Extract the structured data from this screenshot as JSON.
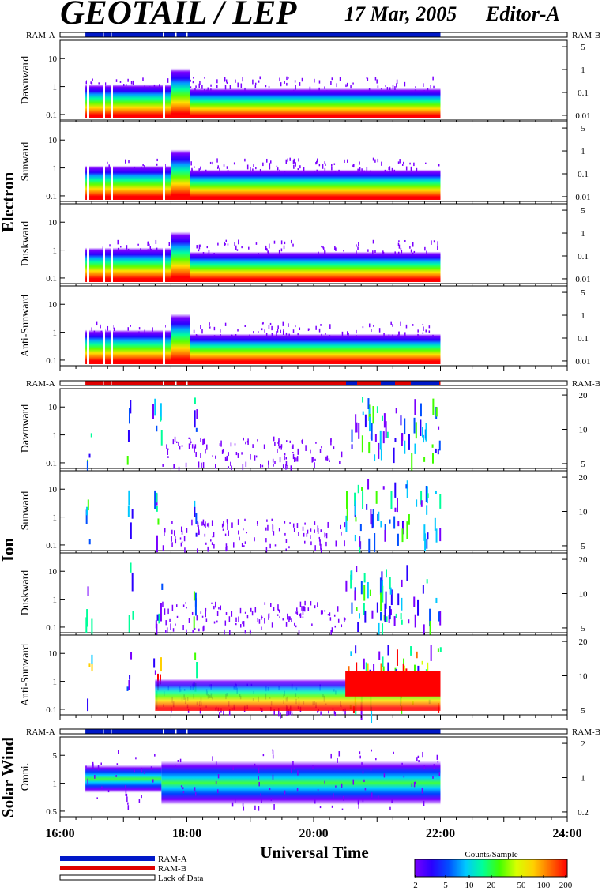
{
  "header": {
    "title": "GEOTAIL / LEP",
    "date": "17 Mar, 2005",
    "editor": "Editor-A"
  },
  "groups": {
    "electron": "Electron",
    "ion": "Ion",
    "solar_wind": "Solar Wind"
  },
  "mode_bar": {
    "left_label": "RAM-A",
    "right_label": "RAM-B"
  },
  "chart_data": {
    "type": "heatmap",
    "title": "GEOTAIL / LEP",
    "xlabel": "Universal Time",
    "x_ticks": [
      "16:00",
      "18:00",
      "20:00",
      "22:00",
      "24:00"
    ],
    "x_range_hours": [
      16,
      24
    ],
    "data_coverage_hours": [
      16.4,
      22.0
    ],
    "panels": [
      {
        "group": "Electron",
        "label": "Dawnward",
        "left_ticks": [
          "10",
          "1",
          "0.1"
        ],
        "right_ticks": [
          "5",
          "1",
          "0.1",
          "0.01"
        ]
      },
      {
        "group": "Electron",
        "label": "Sunward",
        "left_ticks": [
          "10",
          "1",
          "0.1"
        ],
        "right_ticks": [
          "5",
          "1",
          "0.1",
          "0.01"
        ]
      },
      {
        "group": "Electron",
        "label": "Duskward",
        "left_ticks": [
          "10",
          "1",
          "0.1"
        ],
        "right_ticks": [
          "5",
          "1",
          "0.1",
          "0.01"
        ]
      },
      {
        "group": "Electron",
        "label": "Anti-Sunward",
        "left_ticks": [
          "10",
          "1",
          "0.1"
        ],
        "right_ticks": [
          "5",
          "1",
          "0.1",
          "0.01"
        ]
      },
      {
        "group": "Ion",
        "label": "Dawnward",
        "left_ticks": [
          "10",
          "1",
          "0.1"
        ],
        "right_ticks": [
          "20",
          "10",
          "5"
        ]
      },
      {
        "group": "Ion",
        "label": "Sunward",
        "left_ticks": [
          "10",
          "1",
          "0.1"
        ],
        "right_ticks": [
          "20",
          "10",
          "5"
        ]
      },
      {
        "group": "Ion",
        "label": "Duskward",
        "left_ticks": [
          "10",
          "1",
          "0.1"
        ],
        "right_ticks": [
          "20",
          "10",
          "5"
        ]
      },
      {
        "group": "Ion",
        "label": "Anti-Sunward",
        "left_ticks": [
          "10",
          "1",
          "0.1"
        ],
        "right_ticks": [
          "20",
          "10",
          "5"
        ]
      },
      {
        "group": "Solar Wind",
        "label": "Omni.",
        "left_ticks": [
          "5",
          "1",
          "0.5"
        ],
        "right_ticks": [
          "2",
          "1",
          "0.2"
        ]
      }
    ],
    "colorbar": {
      "title": "Counts/Sample",
      "ticks": [
        "2",
        "5",
        "10",
        "20",
        "50",
        "100",
        "200"
      ],
      "colors": [
        "#7a00ff",
        "#2a00ff",
        "#0050ff",
        "#00c8ff",
        "#00ff9a",
        "#40ff00",
        "#d8ff00",
        "#ffd000",
        "#ff6a00",
        "#ff0000"
      ]
    },
    "legend": [
      {
        "label": "RAM-A",
        "color": "#0018c8"
      },
      {
        "label": "RAM-B",
        "color": "#e00000"
      },
      {
        "label": "Lack of Data",
        "color": "#ffffff"
      }
    ]
  }
}
